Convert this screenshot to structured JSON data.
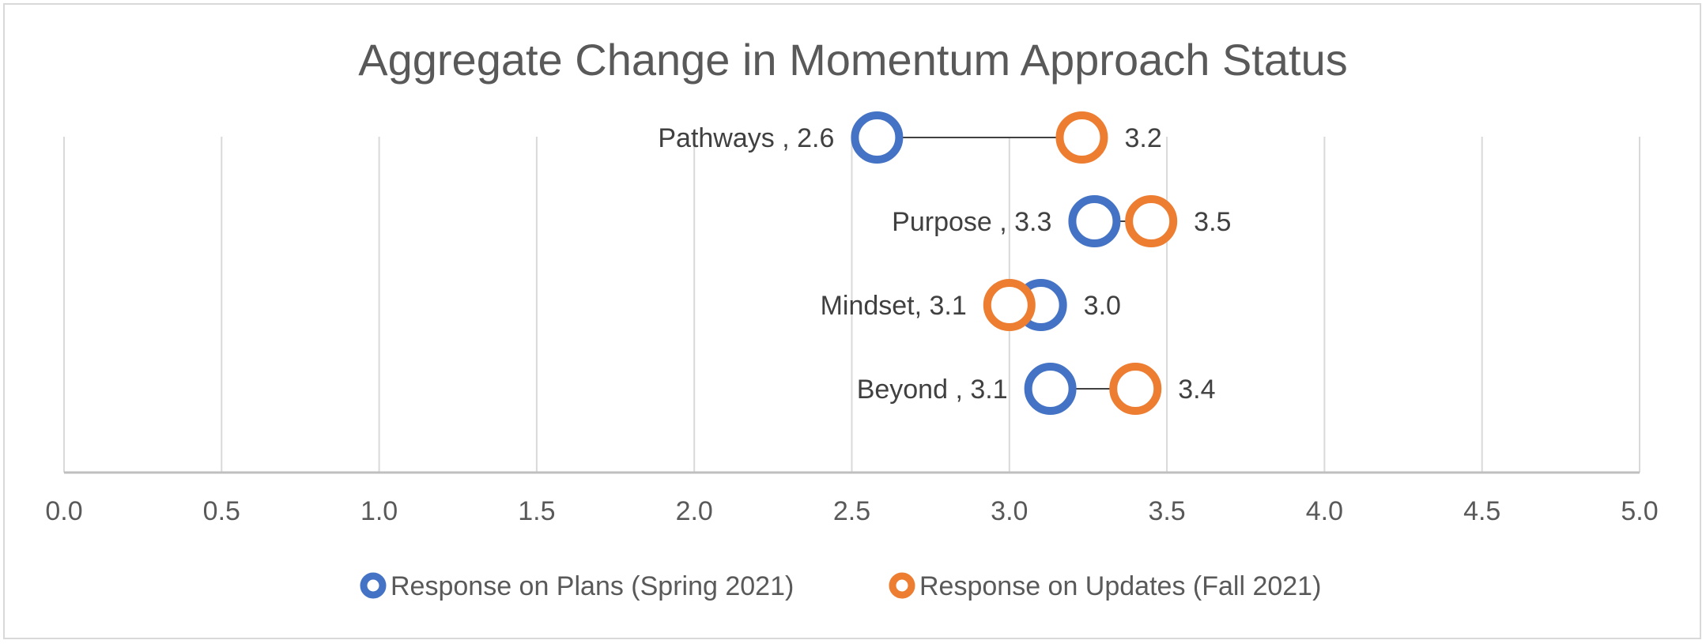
{
  "chart_data": {
    "type": "dumbbell",
    "title": "Aggregate Change in Momentum Approach Status",
    "xlim": [
      0,
      5
    ],
    "x_ticks": [
      "0.0",
      "0.5",
      "1.0",
      "1.5",
      "2.0",
      "2.5",
      "3.0",
      "3.5",
      "4.0",
      "4.5",
      "5.0"
    ],
    "grid": "vertical",
    "legend_position": "bottom",
    "categories": [
      "Pathways",
      "Purpose",
      "Mindset",
      "Beyond"
    ],
    "series": [
      {
        "name": "Response on Plans (Spring 2021)",
        "color": "#4472C4",
        "values": [
          2.58,
          3.27,
          3.1,
          3.13
        ],
        "labels": [
          "Pathways , 2.6",
          "Purpose , 3.3",
          "Mindset, 3.1",
          "Beyond , 3.1"
        ]
      },
      {
        "name": "Response on Updates (Fall 2021)",
        "color": "#ED7D31",
        "values": [
          3.23,
          3.45,
          3.0,
          3.4
        ],
        "labels": [
          "3.2",
          "3.5",
          "3.0",
          "3.4"
        ]
      }
    ]
  }
}
